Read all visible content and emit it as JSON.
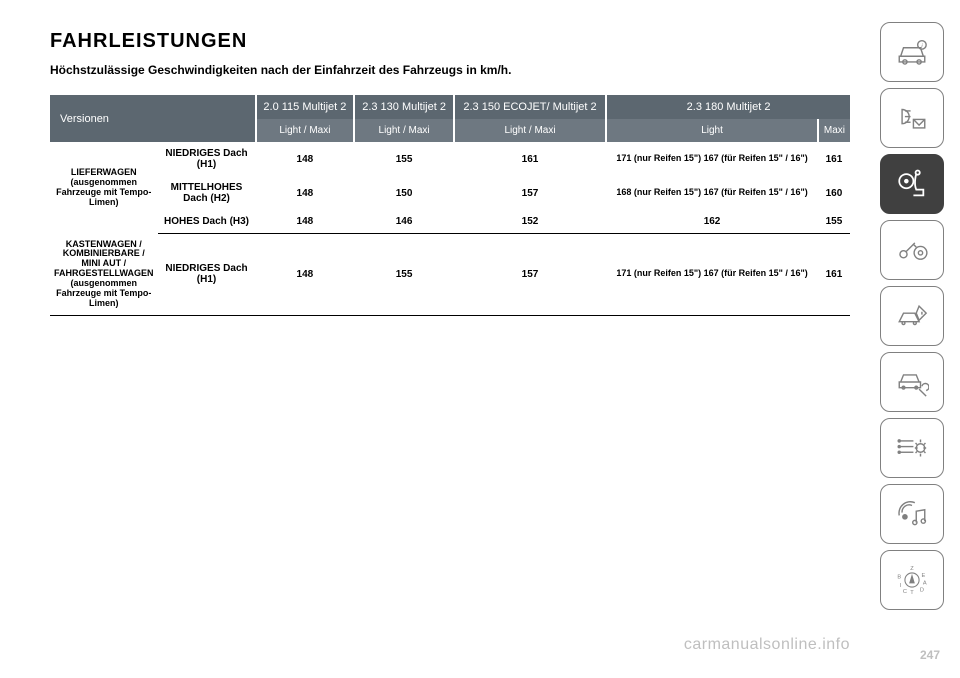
{
  "title": "FAHRLEISTUNGEN",
  "subtitle": "Höchstzulässige Geschwindigkeiten nach der Einfahrzeit des Fahrzeugs in km/h.",
  "header": {
    "versions_label": "Versionen",
    "engines": [
      "2.0 115 Multijet 2",
      "2.3 130 Multijet 2",
      "2.3 150 ECOJET/ Multijet 2",
      "2.3 180 Multijet 2"
    ],
    "sub": {
      "lm": "Light / Maxi",
      "light": "Light",
      "maxi": "Maxi"
    }
  },
  "groups": [
    {
      "label": "LIEFERWAGEN (ausgenommen Fahrzeuge mit Tempo-Limen)",
      "rows": [
        {
          "deck": "NIEDRIGES Dach (H1)",
          "c1": "148",
          "c2": "155",
          "c3": "161",
          "c4": "171 (nur Reifen 15\")\n167 (für Reifen 15\" / 16\")",
          "c5": "161"
        },
        {
          "deck": "MITTELHOHES Dach (H2)",
          "c1": "148",
          "c2": "150",
          "c3": "157",
          "c4": "168 (nur Reifen 15\")\n167 (für Reifen 15\" / 16\")",
          "c5": "160"
        },
        {
          "deck": "HOHES Dach (H3)",
          "c1": "148",
          "c2": "146",
          "c3": "152",
          "c4": "162",
          "c5": "155"
        }
      ]
    },
    {
      "label": "KASTENWAGEN / KOMBINIERBARE / MINI AUT / FAHRGESTELLWAGEN (ausgenommen Fahrzeuge mit Tempo-Limen)",
      "rows": [
        {
          "deck": "NIEDRIGES Dach (H1)",
          "c1": "148",
          "c2": "155",
          "c3": "157",
          "c4": "171 (nur Reifen 15\")\n167 (für Reifen 15\" / 16\")",
          "c5": "161"
        }
      ]
    }
  ],
  "watermark": "carmanualsonline.info",
  "pagenum": "247",
  "colors": {
    "header_bg": "#5c6770",
    "header2_bg": "#6e7881",
    "header_fg": "#ffffff",
    "text": "#000000",
    "icon_gray": "#808080",
    "active_bg": "#404040",
    "watermark": "#bfbfbf"
  },
  "sidebar": [
    {
      "name": "car-info-icon",
      "active": false
    },
    {
      "name": "lights-mail-icon",
      "active": false
    },
    {
      "name": "airbag-seat-icon",
      "active": true
    },
    {
      "name": "key-wheel-icon",
      "active": false
    },
    {
      "name": "crash-warning-icon",
      "active": false
    },
    {
      "name": "car-wrench-icon",
      "active": false
    },
    {
      "name": "list-gear-icon",
      "active": false
    },
    {
      "name": "audio-nav-icon",
      "active": false
    },
    {
      "name": "compass-letters-icon",
      "active": false
    }
  ]
}
